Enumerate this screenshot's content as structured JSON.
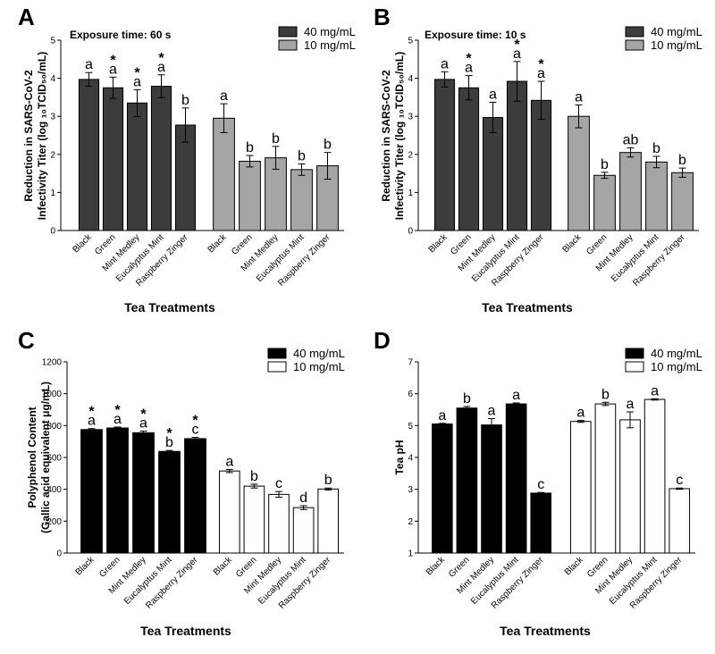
{
  "chart_data": [
    {
      "panel": "A",
      "type": "bar",
      "annotation": "Exposure time: 60 s",
      "ylabel_lines": [
        "Reduction in SARS-CoV-2",
        "Infectivity Titer (log ₁₀TCID₅₀/mL)"
      ],
      "xlabel": "Tea Treatments",
      "ylim": [
        0,
        5
      ],
      "yticks": [
        "0",
        "1",
        "2",
        "3",
        "4",
        "5"
      ],
      "legend": [
        "40 mg/mL",
        "10 mg/mL"
      ],
      "categories": [
        "Black",
        "Green",
        "Mint Medley",
        "Eucalyptus Mint",
        "Raspberry Zinger"
      ],
      "series": [
        {
          "name": "40 mg/mL",
          "color": "#3c3c3c",
          "values": [
            3.97,
            3.75,
            3.35,
            3.79,
            2.77
          ],
          "errors": [
            0.18,
            0.28,
            0.35,
            0.3,
            0.45
          ],
          "letters": [
            "a",
            "a",
            "a",
            "a",
            "b"
          ],
          "stars": [
            "",
            "*",
            "*",
            "*",
            ""
          ]
        },
        {
          "name": "10 mg/mL",
          "color": "#a5a5a5",
          "values": [
            2.95,
            1.82,
            1.91,
            1.6,
            1.7
          ],
          "errors": [
            0.38,
            0.15,
            0.3,
            0.15,
            0.35
          ],
          "letters": [
            "a",
            "b",
            "b",
            "b",
            "b"
          ],
          "stars": [
            "",
            "",
            "",
            "",
            ""
          ]
        }
      ]
    },
    {
      "panel": "B",
      "type": "bar",
      "annotation": "Exposure time: 10 s",
      "ylabel_lines": [
        "Reduction in SARS-CoV-2",
        "Infectivity Titer (log ₁₀TCID₅₀/mL)"
      ],
      "xlabel": "Tea Treatments",
      "ylim": [
        0,
        5
      ],
      "yticks": [
        "0",
        "1",
        "2",
        "3",
        "4",
        "5"
      ],
      "legend": [
        "40 mg/mL",
        "10 mg/mL"
      ],
      "categories": [
        "Black",
        "Green",
        "Mint Medley",
        "Eucalyptus Mint",
        "Raspberry Zinger"
      ],
      "series": [
        {
          "name": "40 mg/mL",
          "color": "#3c3c3c",
          "values": [
            3.97,
            3.75,
            2.97,
            3.92,
            3.42
          ],
          "errors": [
            0.2,
            0.32,
            0.4,
            0.52,
            0.5
          ],
          "letters": [
            "a",
            "a",
            "a",
            "a",
            "a"
          ],
          "stars": [
            "",
            "*",
            "",
            "*",
            "*"
          ]
        },
        {
          "name": "10 mg/mL",
          "color": "#a5a5a5",
          "values": [
            3.0,
            1.45,
            2.05,
            1.8,
            1.52
          ],
          "errors": [
            0.3,
            0.08,
            0.12,
            0.15,
            0.12
          ],
          "letters": [
            "a",
            "b",
            "ab",
            "b",
            "b"
          ],
          "stars": [
            "",
            "",
            "",
            "",
            ""
          ]
        }
      ]
    },
    {
      "panel": "C",
      "type": "bar",
      "annotation": "",
      "ylabel_lines": [
        "Polyphenol Content",
        "(Gallic acid equivalent μg/mL)"
      ],
      "xlabel": "Tea Treatments",
      "ylim": [
        0,
        1200
      ],
      "yticks": [
        "0",
        "200",
        "400",
        "600",
        "800",
        "1000",
        "1200"
      ],
      "legend": [
        "40 mg/mL",
        "10 mg/mL"
      ],
      "categories": [
        "Black",
        "Green",
        "Mint Medley",
        "Eucalyptus Mint",
        "Raspberry Zinger"
      ],
      "series": [
        {
          "name": "40 mg/mL",
          "color": "#000000",
          "values": [
            775,
            785,
            755,
            638,
            718
          ],
          "errors": [
            6,
            6,
            10,
            6,
            8
          ],
          "letters": [
            "a",
            "a",
            "a",
            "b",
            "c"
          ],
          "stars": [
            "*",
            "*",
            "*",
            "*",
            "*"
          ]
        },
        {
          "name": "10 mg/mL",
          "color": "#ffffff",
          "values": [
            515,
            420,
            368,
            285,
            402
          ],
          "errors": [
            10,
            12,
            18,
            12,
            6
          ],
          "letters": [
            "a",
            "b",
            "c",
            "d",
            "b"
          ],
          "stars": [
            "",
            "",
            "",
            "",
            ""
          ]
        }
      ]
    },
    {
      "panel": "D",
      "type": "bar",
      "annotation": "",
      "ylabel_lines": [
        "Tea pH"
      ],
      "xlabel": "Tea Treatments",
      "ylim": [
        1,
        7
      ],
      "yticks": [
        "1",
        "2",
        "3",
        "4",
        "5",
        "6",
        "7"
      ],
      "legend": [
        "40 mg/mL",
        "10 mg/mL"
      ],
      "categories": [
        "Black",
        "Green",
        "Mint Medley",
        "Eucalyptus Mint",
        "Raspberry Zinger"
      ],
      "series": [
        {
          "name": "40 mg/mL",
          "color": "#000000",
          "values": [
            5.05,
            5.55,
            5.02,
            5.68,
            2.88
          ],
          "errors": [
            0.02,
            0.05,
            0.2,
            0.03,
            0.02
          ],
          "letters": [
            "a",
            "b",
            "a",
            "a",
            "c"
          ],
          "stars": [
            "",
            "",
            "",
            "",
            ""
          ]
        },
        {
          "name": "10 mg/mL",
          "color": "#ffffff",
          "values": [
            5.13,
            5.68,
            5.18,
            5.82,
            3.02
          ],
          "errors": [
            0.03,
            0.05,
            0.25,
            0.02,
            0.02
          ],
          "letters": [
            "a",
            "b",
            "a",
            "a",
            "c"
          ],
          "stars": [
            "",
            "",
            "",
            "",
            ""
          ]
        }
      ]
    }
  ]
}
